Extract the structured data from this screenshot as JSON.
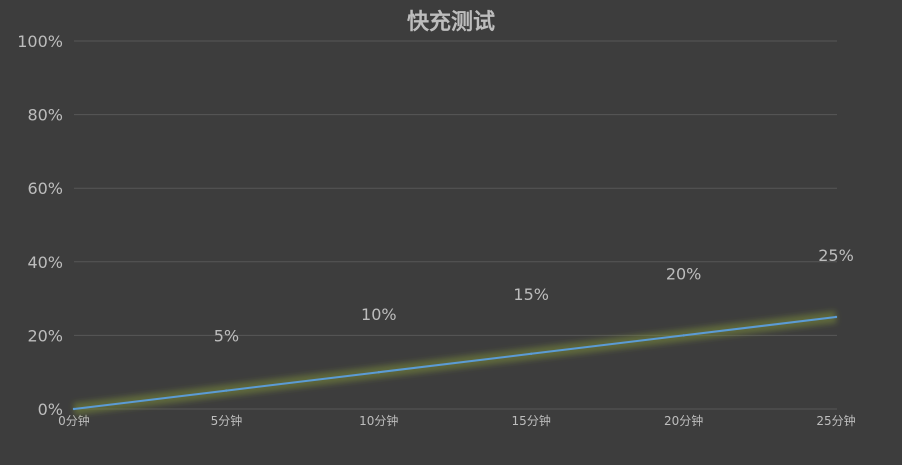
{
  "chart_data": {
    "type": "line",
    "title": "快充测试",
    "categories": [
      "0分钟",
      "5分钟",
      "10分钟",
      "15分钟",
      "20分钟",
      "25分钟"
    ],
    "series": [
      {
        "values": [
          0,
          5,
          10,
          15,
          20,
          25
        ]
      }
    ],
    "data_labels": [
      "",
      "5%",
      "10%",
      "15%",
      "20%",
      "25%"
    ],
    "y_tick_labels": [
      "0%",
      "20%",
      "40%",
      "60%",
      "80%",
      "100%"
    ],
    "y_ticks": [
      0,
      20,
      40,
      60,
      80,
      100
    ],
    "ylim": [
      0,
      100
    ],
    "grid": true,
    "colors": {
      "background": "#3d3d3d",
      "line": "#5b9bd5",
      "glow": "#7a8a3a",
      "grid": "#575757",
      "text": "#bdbdbd"
    }
  }
}
